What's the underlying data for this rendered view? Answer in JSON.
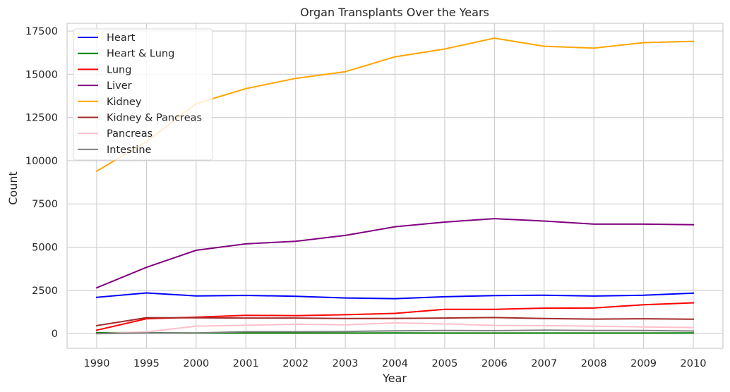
{
  "chart_data": {
    "type": "line",
    "title": "Organ Transplants Over the Years",
    "xlabel": "Year",
    "ylabel": "Count",
    "categories": [
      "1990",
      "1995",
      "2000",
      "2001",
      "2002",
      "2003",
      "2004",
      "2005",
      "2006",
      "2007",
      "2008",
      "2009",
      "2010"
    ],
    "ylim": [
      -850,
      17950
    ],
    "yticks": [
      "0",
      "2500",
      "5000",
      "7500",
      "10000",
      "12500",
      "15000",
      "17500"
    ],
    "grid": true,
    "legend_position": "top-left",
    "series": [
      {
        "name": "Heart",
        "color": "#0000ff",
        "values": [
          2100,
          2350,
          2180,
          2210,
          2160,
          2060,
          2020,
          2130,
          2200,
          2220,
          2170,
          2220,
          2340
        ]
      },
      {
        "name": "Heart & Lung",
        "color": "#008000",
        "values": [
          50,
          50,
          30,
          30,
          30,
          30,
          40,
          30,
          30,
          30,
          30,
          30,
          40
        ]
      },
      {
        "name": "Lung",
        "color": "#ff0000",
        "values": [
          200,
          860,
          950,
          1060,
          1040,
          1090,
          1170,
          1400,
          1400,
          1470,
          1480,
          1670,
          1780
        ]
      },
      {
        "name": "Liver",
        "color": "#800080",
        "values": [
          2650,
          3830,
          4820,
          5190,
          5340,
          5680,
          6180,
          6450,
          6650,
          6510,
          6330,
          6330,
          6300
        ]
      },
      {
        "name": "Kidney",
        "color": "#ffa500",
        "values": [
          9400,
          11100,
          13300,
          14170,
          14760,
          15150,
          16010,
          16460,
          17090,
          16620,
          16510,
          16830,
          16900
        ]
      },
      {
        "name": "Kidney & Pancreas",
        "color": "#a52a2a",
        "values": [
          460,
          920,
          910,
          900,
          900,
          870,
          880,
          900,
          930,
          870,
          840,
          860,
          830
        ]
      },
      {
        "name": "Pancreas",
        "color": "#ffc0cb",
        "values": [
          0,
          100,
          430,
          480,
          540,
          510,
          620,
          560,
          470,
          460,
          430,
          380,
          350
        ]
      },
      {
        "name": "Intestine",
        "color": "#808080",
        "values": [
          0,
          40,
          40,
          110,
          110,
          120,
          160,
          180,
          170,
          200,
          180,
          180,
          150
        ]
      }
    ]
  }
}
